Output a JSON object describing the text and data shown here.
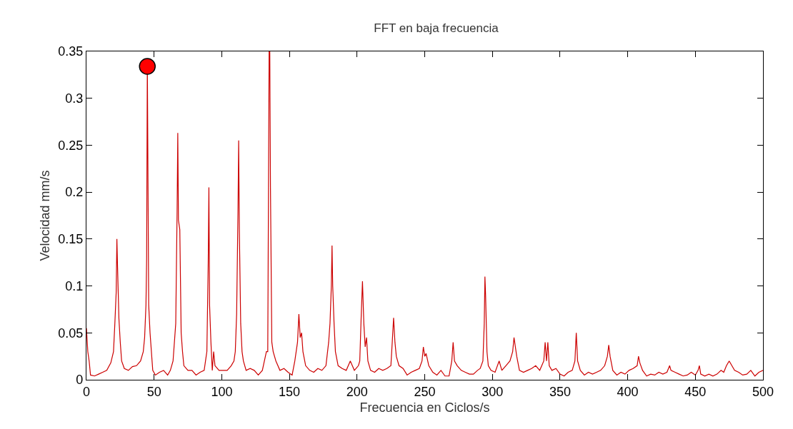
{
  "chart_data": {
    "type": "line",
    "title": "FFT en baja frecuencia",
    "xlabel": "Frecuencia en Ciclos/s",
    "ylabel": "Velocidad mm/s",
    "xlim": [
      0,
      500
    ],
    "xticks": [
      0,
      50,
      100,
      150,
      200,
      250,
      300,
      350,
      400,
      450,
      500
    ],
    "ylim": [
      0,
      0.35
    ],
    "yticks": [
      0,
      0.05,
      0.1,
      0.15,
      0.2,
      0.25,
      0.3,
      0.35
    ],
    "grid": false,
    "line_style": "solid",
    "series": [
      {
        "color": "#cc0000",
        "x": [
          0,
          1,
          2,
          3,
          6,
          9,
          12,
          15,
          18,
          20,
          21,
          22,
          22.5,
          23,
          24,
          25,
          26,
          28,
          31,
          34,
          37,
          40,
          42,
          43,
          44,
          44.5,
          45,
          45.5,
          46,
          47,
          48,
          49,
          51,
          54,
          57,
          60,
          62,
          64,
          65,
          66,
          67,
          67.5,
          68,
          69,
          70,
          71,
          72,
          75,
          78,
          81,
          84,
          87,
          88,
          89,
          90,
          90.5,
          91,
          92,
          93,
          94,
          95,
          98,
          101,
          104,
          107,
          109,
          110,
          111,
          112,
          112.5,
          113,
          114,
          115,
          116,
          118,
          121,
          124,
          127,
          130,
          133,
          134,
          135,
          135.5,
          136,
          137,
          138,
          140,
          143,
          146,
          149,
          152,
          154,
          156,
          157,
          158,
          159,
          160,
          162,
          165,
          168,
          171,
          174,
          177,
          179,
          180,
          181,
          181.5,
          182,
          183,
          184,
          186,
          189,
          192,
          195,
          198,
          201,
          202,
          203,
          204,
          205,
          206,
          207,
          208,
          210,
          213,
          216,
          219,
          222,
          225,
          226,
          227,
          228,
          229,
          231,
          234,
          237,
          240,
          243,
          246,
          248,
          249,
          250,
          251,
          253,
          256,
          259,
          262,
          265,
          268,
          270,
          271,
          272,
          274,
          277,
          280,
          283,
          286,
          289,
          291,
          293,
          294,
          294.5,
          295,
          296,
          297,
          299,
          302,
          305,
          307,
          310,
          313,
          315,
          316,
          317,
          318,
          320,
          323,
          326,
          329,
          332,
          335,
          338,
          339,
          340,
          341,
          342,
          344,
          347,
          350,
          353,
          356,
          359,
          361,
          362,
          363,
          365,
          368,
          371,
          374,
          377,
          380,
          383,
          385,
          386,
          387,
          389,
          392,
          395,
          398,
          401,
          404,
          407,
          408,
          409,
          411,
          414,
          417,
          420,
          423,
          426,
          429,
          431,
          432,
          435,
          438,
          441,
          444,
          447,
          450,
          452,
          453,
          454,
          457,
          460,
          463,
          466,
          469,
          471,
          473,
          475,
          477,
          479,
          482,
          485,
          488,
          491,
          494,
          497,
          500
        ],
        "values": [
          0.055,
          0.03,
          0.02,
          0.005,
          0.004,
          0.006,
          0.008,
          0.01,
          0.018,
          0.03,
          0.06,
          0.094,
          0.15,
          0.12,
          0.065,
          0.04,
          0.02,
          0.012,
          0.01,
          0.014,
          0.015,
          0.02,
          0.03,
          0.045,
          0.08,
          0.13,
          0.34,
          0.21,
          0.08,
          0.05,
          0.03,
          0.01,
          0.005,
          0.008,
          0.01,
          0.005,
          0.01,
          0.02,
          0.04,
          0.06,
          0.18,
          0.263,
          0.17,
          0.16,
          0.05,
          0.03,
          0.015,
          0.01,
          0.01,
          0.005,
          0.008,
          0.01,
          0.02,
          0.03,
          0.125,
          0.205,
          0.08,
          0.04,
          0.01,
          0.03,
          0.015,
          0.01,
          0.01,
          0.01,
          0.015,
          0.02,
          0.03,
          0.07,
          0.18,
          0.255,
          0.16,
          0.06,
          0.03,
          0.02,
          0.01,
          0.012,
          0.01,
          0.005,
          0.01,
          0.03,
          0.03,
          0.35,
          0.35,
          0.205,
          0.04,
          0.03,
          0.02,
          0.01,
          0.012,
          0.008,
          0.005,
          0.02,
          0.04,
          0.07,
          0.045,
          0.05,
          0.03,
          0.015,
          0.01,
          0.008,
          0.012,
          0.01,
          0.015,
          0.04,
          0.06,
          0.1,
          0.143,
          0.1,
          0.06,
          0.03,
          0.015,
          0.012,
          0.01,
          0.02,
          0.01,
          0.015,
          0.02,
          0.065,
          0.105,
          0.06,
          0.035,
          0.045,
          0.02,
          0.01,
          0.008,
          0.012,
          0.01,
          0.012,
          0.015,
          0.04,
          0.066,
          0.04,
          0.025,
          0.015,
          0.012,
          0.005,
          0.008,
          0.01,
          0.012,
          0.02,
          0.035,
          0.025,
          0.028,
          0.015,
          0.008,
          0.005,
          0.01,
          0.004,
          0.004,
          0.02,
          0.04,
          0.02,
          0.015,
          0.01,
          0.008,
          0.006,
          0.006,
          0.01,
          0.012,
          0.02,
          0.06,
          0.11,
          0.09,
          0.03,
          0.015,
          0.01,
          0.008,
          0.02,
          0.01,
          0.015,
          0.02,
          0.03,
          0.045,
          0.035,
          0.025,
          0.01,
          0.008,
          0.01,
          0.012,
          0.015,
          0.01,
          0.02,
          0.04,
          0.02,
          0.04,
          0.015,
          0.01,
          0.012,
          0.006,
          0.004,
          0.008,
          0.01,
          0.02,
          0.05,
          0.02,
          0.01,
          0.005,
          0.008,
          0.006,
          0.008,
          0.01,
          0.015,
          0.025,
          0.037,
          0.025,
          0.01,
          0.005,
          0.008,
          0.006,
          0.01,
          0.012,
          0.015,
          0.025,
          0.018,
          0.01,
          0.004,
          0.006,
          0.005,
          0.008,
          0.006,
          0.008,
          0.015,
          0.01,
          0.008,
          0.006,
          0.004,
          0.005,
          0.008,
          0.005,
          0.01,
          0.015,
          0.006,
          0.004,
          0.006,
          0.004,
          0.006,
          0.01,
          0.008,
          0.015,
          0.02,
          0.015,
          0.01,
          0.008,
          0.005,
          0.006,
          0.01,
          0.004,
          0.008,
          0.01
        ]
      },
      {
        "type": "scatter",
        "marker": "circle",
        "color": "#ff0000",
        "x": [
          45
        ],
        "values": [
          0.334
        ]
      }
    ]
  }
}
